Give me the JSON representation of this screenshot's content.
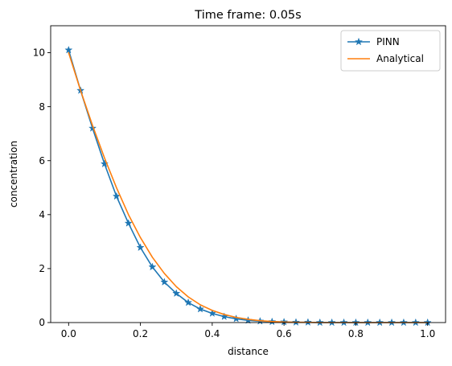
{
  "chart_data": {
    "type": "line",
    "title": "Time frame: 0.05s",
    "xlabel": "distance",
    "ylabel": "concentration",
    "xlim": [
      -0.05,
      1.05
    ],
    "ylim": [
      0,
      11
    ],
    "xticks": [
      0.0,
      0.2,
      0.4,
      0.6,
      0.8,
      1.0
    ],
    "xtick_labels": [
      "0.0",
      "0.2",
      "0.4",
      "0.6",
      "0.8",
      "1.0"
    ],
    "yticks": [
      0,
      2,
      4,
      6,
      8,
      10
    ],
    "ytick_labels": [
      "0",
      "2",
      "4",
      "6",
      "8",
      "10"
    ],
    "grid": false,
    "legend_position": "top-right",
    "series": [
      {
        "name": "PINN",
        "color": "#1f77b4",
        "marker": "star",
        "x": [
          0.0,
          0.0333,
          0.0667,
          0.1,
          0.1333,
          0.1667,
          0.2,
          0.2333,
          0.2667,
          0.3,
          0.3333,
          0.3667,
          0.4,
          0.4333,
          0.4667,
          0.5,
          0.5333,
          0.5667,
          0.6,
          0.6333,
          0.6667,
          0.7,
          0.7333,
          0.7667,
          0.8,
          0.8333,
          0.8667,
          0.9,
          0.9333,
          0.9667,
          1.0
        ],
        "y": [
          10.1,
          8.6,
          7.2,
          5.88,
          4.68,
          3.68,
          2.78,
          2.06,
          1.5,
          1.08,
          0.74,
          0.5,
          0.34,
          0.22,
          0.14,
          0.08,
          0.05,
          0.03,
          0.02,
          0.01,
          0.01,
          0.0,
          0.0,
          0.0,
          0.0,
          0.0,
          0.0,
          0.0,
          0.0,
          0.0,
          0.0
        ]
      },
      {
        "name": "Analytical",
        "color": "#ff7f0e",
        "marker": "none",
        "x": [
          0.0,
          0.0333,
          0.0667,
          0.1,
          0.1333,
          0.1667,
          0.2,
          0.2333,
          0.2667,
          0.3,
          0.3333,
          0.3667,
          0.4,
          0.4333,
          0.4667,
          0.5,
          0.5333,
          0.5667,
          0.6,
          0.6333,
          0.6667,
          0.7,
          0.7333,
          0.7667,
          0.8,
          0.8333,
          0.8667,
          0.9,
          0.9333,
          0.9667,
          1.0
        ],
        "y": [
          10.0,
          8.6,
          7.3,
          6.1,
          5.0,
          4.0,
          3.15,
          2.42,
          1.82,
          1.33,
          0.95,
          0.66,
          0.45,
          0.3,
          0.19,
          0.12,
          0.07,
          0.04,
          0.02,
          0.01,
          0.01,
          0.0,
          0.0,
          0.0,
          0.0,
          0.0,
          0.0,
          0.0,
          0.0,
          0.0,
          0.0
        ]
      }
    ]
  }
}
